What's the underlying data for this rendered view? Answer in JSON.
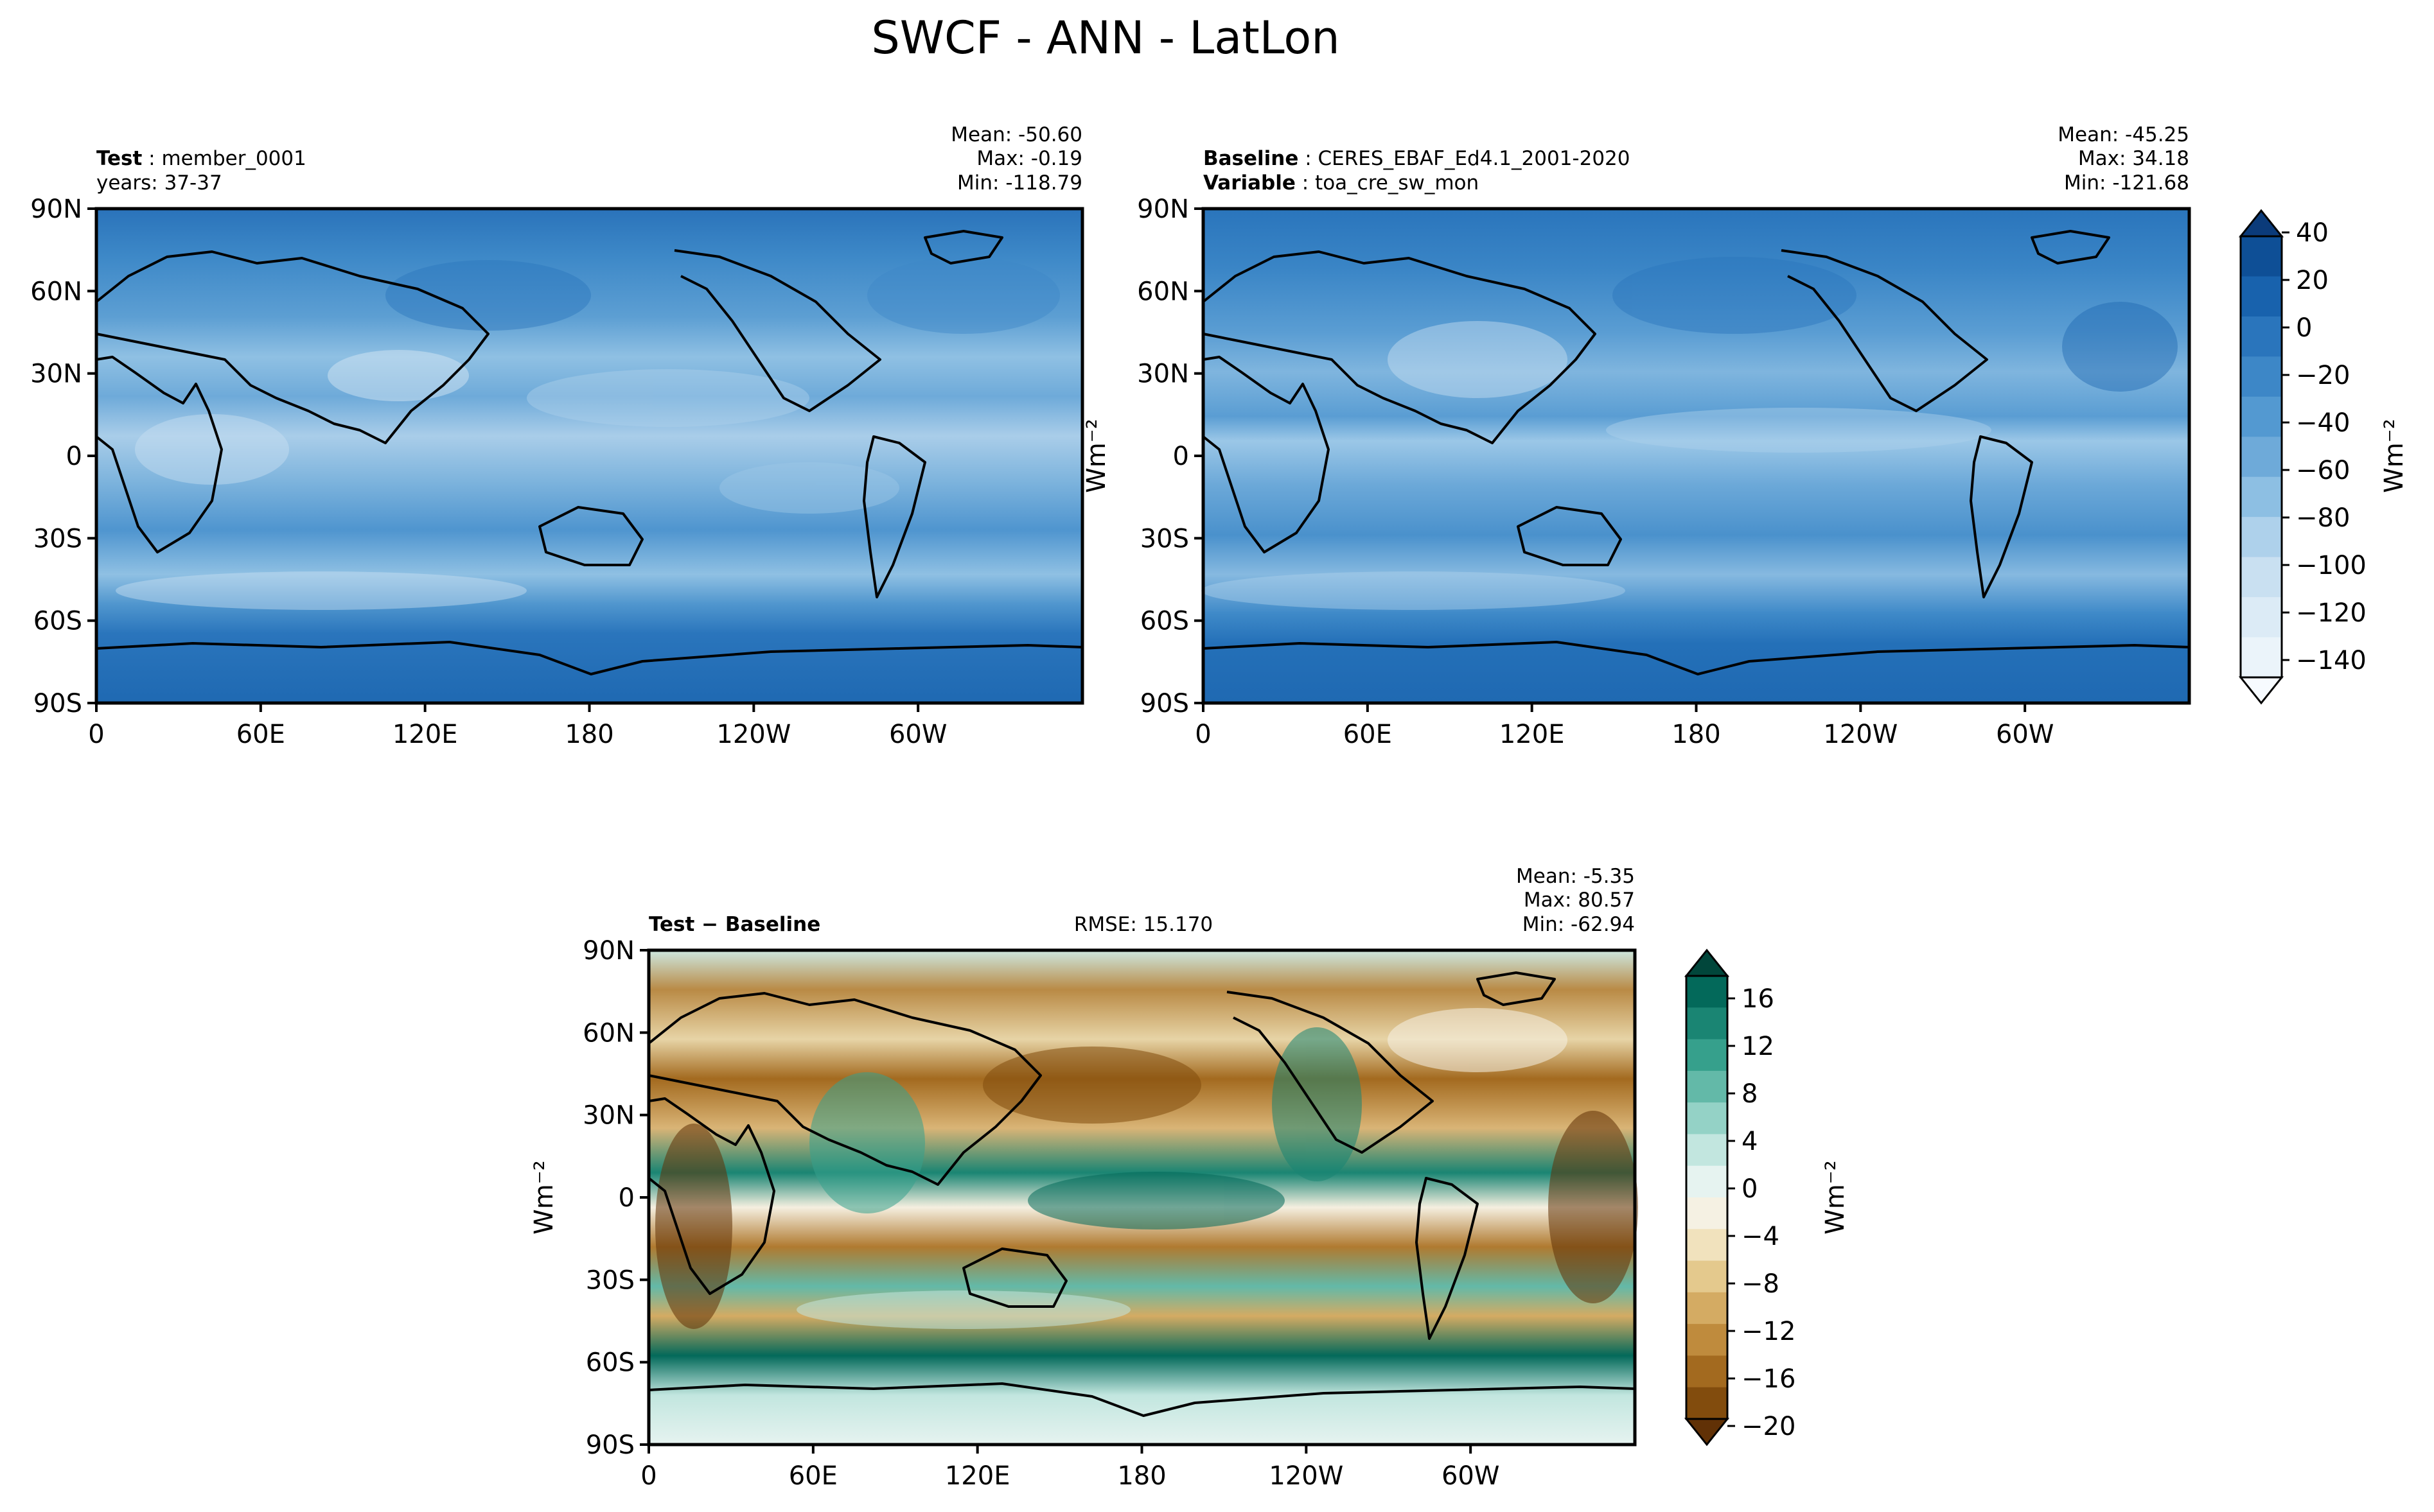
{
  "figure": {
    "title": "SWCF - ANN - LatLon"
  },
  "chart_data": [
    {
      "type": "heatmap",
      "panel": "test",
      "label_key": "Test",
      "label_value": "member_0001",
      "years_text": "years: 37-37",
      "stats": {
        "mean": "Mean: -50.60",
        "max": "Max: -0.19",
        "min": "Min: -118.79"
      },
      "unit": "Wm⁻²",
      "xlim": [
        0,
        360
      ],
      "ylim": [
        -90,
        90
      ],
      "xticks": [
        "0",
        "60E",
        "120E",
        "180",
        "120W",
        "60W"
      ],
      "yticks": [
        "90N",
        "60N",
        "30N",
        "0",
        "30S",
        "60S",
        "90S"
      ],
      "mean_value": -50.6,
      "max_value": -0.19,
      "min_value": -118.79
    },
    {
      "type": "heatmap",
      "panel": "baseline",
      "label_key": "Baseline",
      "label_value": "CERES_EBAF_Ed4.1_2001-2020",
      "var_key": "Variable",
      "var_value": "toa_cre_sw_mon",
      "stats": {
        "mean": "Mean: -45.25",
        "max": "Max: 34.18",
        "min": "Min: -121.68"
      },
      "unit": "Wm⁻²",
      "xlim": [
        0,
        360
      ],
      "ylim": [
        -90,
        90
      ],
      "xticks": [
        "0",
        "60E",
        "120E",
        "180",
        "120W",
        "60W"
      ],
      "yticks": [
        "90N",
        "60N",
        "30N",
        "0",
        "30S",
        "60S",
        "90S"
      ],
      "mean_value": -45.25,
      "max_value": 34.18,
      "min_value": -121.68
    },
    {
      "type": "heatmap",
      "panel": "difference",
      "label_text": "Test − Baseline",
      "rmse_text": "RMSE: 15.170",
      "rmse_value": 15.17,
      "stats": {
        "mean": "Mean: -5.35",
        "max": "Max: 80.57",
        "min": "Min: -62.94"
      },
      "unit": "Wm⁻²",
      "xlim": [
        0,
        360
      ],
      "ylim": [
        -90,
        90
      ],
      "xticks": [
        "0",
        "60E",
        "120E",
        "180",
        "120W",
        "60W"
      ],
      "yticks": [
        "90N",
        "60N",
        "30N",
        "0",
        "30S",
        "60S",
        "90S"
      ],
      "mean_value": -5.35,
      "max_value": 80.57,
      "min_value": -62.94
    }
  ],
  "colorbars": {
    "main": {
      "unit": "Wm⁻²",
      "ticks": [
        "40",
        "20",
        "0",
        "−20",
        "−40",
        "−60",
        "−80",
        "−100",
        "−120",
        "−140"
      ],
      "colors": [
        "#0b3b7a",
        "#0e4f96",
        "#1862ad",
        "#2a75bc",
        "#3d87c7",
        "#5399d1",
        "#6eaad9",
        "#8dbfe3",
        "#aed1eb",
        "#c9e0f1",
        "#dcebf6",
        "#ebf4fa",
        "#f7fbff"
      ]
    },
    "diff": {
      "unit": "Wm⁻²",
      "ticks": [
        "16",
        "12",
        "8",
        "4",
        "0",
        "−4",
        "−8",
        "−12",
        "−16",
        "−20"
      ],
      "colors": [
        "#01463b",
        "#03695a",
        "#1a8573",
        "#36a08c",
        "#63b9a8",
        "#94d2c6",
        "#c2e6df",
        "#e6f3f0",
        "#f5f1e3",
        "#f1e2bd",
        "#e4c98d",
        "#d4ab63",
        "#bf8b3d",
        "#a36a1f",
        "#824c0d",
        "#613106"
      ]
    }
  }
}
